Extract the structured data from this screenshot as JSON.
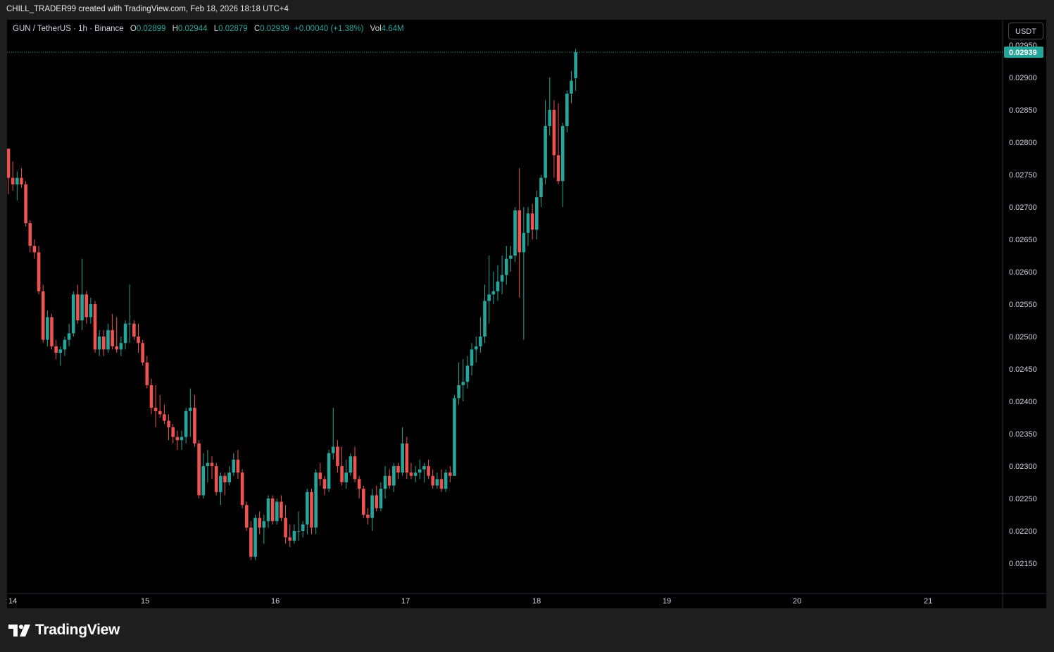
{
  "header": {
    "credit": "CHILL_TRADER99 created with TradingView.com, Feb 18, 2026 18:18 UTC+4"
  },
  "legend": {
    "symbol": "GUN / TetherUS · 1h · Binance",
    "open_label": "O",
    "open": "0.02899",
    "high_label": "H",
    "high": "0.02944",
    "low_label": "L",
    "low": "0.02879",
    "close_label": "C",
    "close": "0.02939",
    "change": "+0.00040 (+1.38%)",
    "vol_label": "Vol",
    "vol": "4.64M"
  },
  "currency_button": "USDT",
  "footer": {
    "brand": "TradingView",
    "logo_icon": "tradingview-logo-icon"
  },
  "colors": {
    "up": "#26a69a",
    "down": "#ef5350",
    "background": "#000000",
    "axis_text": "#d1d4dc"
  },
  "chart_data": {
    "type": "candlestick",
    "symbol": "GUN / TetherUS",
    "interval": "1h",
    "exchange": "Binance",
    "y_range": [
      0.02125,
      0.02975
    ],
    "y_ticks": [
      "0.02150",
      "0.02200",
      "0.02250",
      "0.02300",
      "0.02350",
      "0.02400",
      "0.02450",
      "0.02500",
      "0.02550",
      "0.02600",
      "0.02650",
      "0.02700",
      "0.02750",
      "0.02800",
      "0.02850",
      "0.02900",
      "0.02950"
    ],
    "x_ticks": [
      "14",
      "15",
      "16",
      "17",
      "18",
      "19",
      "20",
      "21"
    ],
    "last_price": "0.02939",
    "grid": false,
    "candles": [
      [
        0.0279,
        0.0279,
        0.0272,
        0.02745
      ],
      [
        0.02745,
        0.0277,
        0.02725,
        0.02735
      ],
      [
        0.02735,
        0.02755,
        0.0271,
        0.02745
      ],
      [
        0.02745,
        0.0276,
        0.0273,
        0.02735
      ],
      [
        0.02735,
        0.0274,
        0.0267,
        0.02675
      ],
      [
        0.02675,
        0.0268,
        0.0263,
        0.0264
      ],
      [
        0.0264,
        0.0265,
        0.0262,
        0.0263
      ],
      [
        0.0263,
        0.0264,
        0.02565,
        0.0257
      ],
      [
        0.0257,
        0.0258,
        0.0249,
        0.02495
      ],
      [
        0.02495,
        0.0254,
        0.02485,
        0.0253
      ],
      [
        0.0253,
        0.02535,
        0.0248,
        0.02485
      ],
      [
        0.02485,
        0.02495,
        0.02465,
        0.02475
      ],
      [
        0.02475,
        0.02485,
        0.02455,
        0.0248
      ],
      [
        0.0248,
        0.025,
        0.0247,
        0.02495
      ],
      [
        0.02495,
        0.0252,
        0.02485,
        0.02505
      ],
      [
        0.02505,
        0.0257,
        0.025,
        0.02565
      ],
      [
        0.02565,
        0.0258,
        0.0252,
        0.02525
      ],
      [
        0.02525,
        0.0262,
        0.0251,
        0.02565
      ],
      [
        0.02565,
        0.0257,
        0.0252,
        0.0253
      ],
      [
        0.0253,
        0.0256,
        0.0252,
        0.0255
      ],
      [
        0.0255,
        0.02555,
        0.02475,
        0.0248
      ],
      [
        0.0248,
        0.0251,
        0.0247,
        0.025
      ],
      [
        0.025,
        0.0251,
        0.0247,
        0.0248
      ],
      [
        0.0248,
        0.0252,
        0.02475,
        0.0251
      ],
      [
        0.0251,
        0.02535,
        0.0248,
        0.02485
      ],
      [
        0.02485,
        0.0253,
        0.02475,
        0.0248
      ],
      [
        0.0248,
        0.025,
        0.0247,
        0.0249
      ],
      [
        0.0249,
        0.02525,
        0.0248,
        0.0252
      ],
      [
        0.0252,
        0.0258,
        0.0249,
        0.0252
      ],
      [
        0.0252,
        0.02525,
        0.02495,
        0.025
      ],
      [
        0.025,
        0.0252,
        0.02475,
        0.0249
      ],
      [
        0.0249,
        0.02495,
        0.02455,
        0.0246
      ],
      [
        0.0246,
        0.0247,
        0.0242,
        0.02425
      ],
      [
        0.02425,
        0.02435,
        0.0238,
        0.0239
      ],
      [
        0.0239,
        0.02425,
        0.0236,
        0.02385
      ],
      [
        0.02385,
        0.0241,
        0.02375,
        0.0238
      ],
      [
        0.0238,
        0.02395,
        0.02365,
        0.0237
      ],
      [
        0.0237,
        0.0238,
        0.0234,
        0.0236
      ],
      [
        0.0236,
        0.02365,
        0.02335,
        0.02345
      ],
      [
        0.02345,
        0.02355,
        0.02325,
        0.0234
      ],
      [
        0.0234,
        0.02355,
        0.02325,
        0.02345
      ],
      [
        0.02345,
        0.0239,
        0.02335,
        0.02385
      ],
      [
        0.02385,
        0.0242,
        0.02345,
        0.0239
      ],
      [
        0.0239,
        0.0241,
        0.0233,
        0.02335
      ],
      [
        0.02335,
        0.0234,
        0.0225,
        0.02255
      ],
      [
        0.02255,
        0.0232,
        0.0225,
        0.023
      ],
      [
        0.023,
        0.02325,
        0.02275,
        0.02305
      ],
      [
        0.02305,
        0.02315,
        0.0228,
        0.023
      ],
      [
        0.023,
        0.02305,
        0.02255,
        0.0226
      ],
      [
        0.0226,
        0.0229,
        0.0224,
        0.02285
      ],
      [
        0.02285,
        0.0229,
        0.02255,
        0.02275
      ],
      [
        0.02275,
        0.023,
        0.0227,
        0.0229
      ],
      [
        0.0229,
        0.0232,
        0.02285,
        0.0231
      ],
      [
        0.0231,
        0.02325,
        0.0228,
        0.0229
      ],
      [
        0.0229,
        0.02295,
        0.02235,
        0.0224
      ],
      [
        0.0224,
        0.02245,
        0.022,
        0.02205
      ],
      [
        0.02205,
        0.02215,
        0.02155,
        0.0216
      ],
      [
        0.0216,
        0.02225,
        0.02155,
        0.0222
      ],
      [
        0.0222,
        0.0223,
        0.02195,
        0.02205
      ],
      [
        0.02205,
        0.02225,
        0.0218,
        0.02215
      ],
      [
        0.02215,
        0.02255,
        0.02205,
        0.0225
      ],
      [
        0.0225,
        0.02255,
        0.0221,
        0.02215
      ],
      [
        0.02215,
        0.0225,
        0.0221,
        0.02245
      ],
      [
        0.02245,
        0.02255,
        0.02215,
        0.0222
      ],
      [
        0.0222,
        0.0224,
        0.0218,
        0.0219
      ],
      [
        0.0219,
        0.0221,
        0.02175,
        0.02185
      ],
      [
        0.02185,
        0.0221,
        0.0218,
        0.022
      ],
      [
        0.022,
        0.0223,
        0.02185,
        0.022
      ],
      [
        0.022,
        0.02215,
        0.0219,
        0.0221
      ],
      [
        0.0221,
        0.02265,
        0.02195,
        0.0226
      ],
      [
        0.0226,
        0.02265,
        0.02195,
        0.02205
      ],
      [
        0.02205,
        0.02295,
        0.02195,
        0.0229
      ],
      [
        0.0229,
        0.02305,
        0.0227,
        0.0228
      ],
      [
        0.0228,
        0.02285,
        0.02255,
        0.02265
      ],
      [
        0.02265,
        0.02325,
        0.0226,
        0.0232
      ],
      [
        0.0232,
        0.0239,
        0.0231,
        0.0233
      ],
      [
        0.0233,
        0.0234,
        0.0229,
        0.023
      ],
      [
        0.023,
        0.0233,
        0.0227,
        0.02275
      ],
      [
        0.02275,
        0.0231,
        0.02265,
        0.0229
      ],
      [
        0.0229,
        0.0232,
        0.02285,
        0.02315
      ],
      [
        0.02315,
        0.0233,
        0.02275,
        0.0228
      ],
      [
        0.0228,
        0.02285,
        0.0225,
        0.02265
      ],
      [
        0.02265,
        0.0227,
        0.0222,
        0.02225
      ],
      [
        0.02225,
        0.02235,
        0.0221,
        0.0222
      ],
      [
        0.0222,
        0.02265,
        0.022,
        0.02255
      ],
      [
        0.02255,
        0.0227,
        0.0223,
        0.02235
      ],
      [
        0.02235,
        0.02275,
        0.0223,
        0.02265
      ],
      [
        0.02265,
        0.023,
        0.0225,
        0.02285
      ],
      [
        0.02285,
        0.02295,
        0.02265,
        0.0227
      ],
      [
        0.0227,
        0.02305,
        0.0226,
        0.023
      ],
      [
        0.023,
        0.02305,
        0.0228,
        0.0229
      ],
      [
        0.0229,
        0.0236,
        0.02285,
        0.02335
      ],
      [
        0.02335,
        0.02345,
        0.0228,
        0.0229
      ],
      [
        0.0229,
        0.02305,
        0.0228,
        0.02285
      ],
      [
        0.02285,
        0.023,
        0.02275,
        0.0229
      ],
      [
        0.0229,
        0.0231,
        0.0228,
        0.02295
      ],
      [
        0.02295,
        0.02305,
        0.02275,
        0.023
      ],
      [
        0.023,
        0.0231,
        0.0228,
        0.02285
      ],
      [
        0.02285,
        0.02295,
        0.02265,
        0.0227
      ],
      [
        0.0227,
        0.0229,
        0.02265,
        0.0228
      ],
      [
        0.0228,
        0.02295,
        0.0226,
        0.02265
      ],
      [
        0.02265,
        0.02295,
        0.0226,
        0.0229
      ],
      [
        0.0229,
        0.023,
        0.02275,
        0.02285
      ],
      [
        0.02285,
        0.0241,
        0.02285,
        0.02405
      ],
      [
        0.02405,
        0.0246,
        0.02395,
        0.02425
      ],
      [
        0.02425,
        0.02465,
        0.024,
        0.0243
      ],
      [
        0.0243,
        0.0247,
        0.0242,
        0.02455
      ],
      [
        0.02455,
        0.0249,
        0.0244,
        0.0248
      ],
      [
        0.0248,
        0.025,
        0.0246,
        0.02485
      ],
      [
        0.02485,
        0.0253,
        0.02475,
        0.025
      ],
      [
        0.025,
        0.0258,
        0.0249,
        0.02555
      ],
      [
        0.02555,
        0.02625,
        0.0252,
        0.02565
      ],
      [
        0.02565,
        0.026,
        0.0255,
        0.0257
      ],
      [
        0.0257,
        0.0261,
        0.02555,
        0.02585
      ],
      [
        0.02585,
        0.02625,
        0.02565,
        0.02595
      ],
      [
        0.02595,
        0.0264,
        0.0258,
        0.0262
      ],
      [
        0.0262,
        0.0264,
        0.026,
        0.02625
      ],
      [
        0.02625,
        0.027,
        0.02615,
        0.02695
      ],
      [
        0.02695,
        0.0276,
        0.0256,
        0.0263
      ],
      [
        0.0263,
        0.027,
        0.02495,
        0.0266
      ],
      [
        0.0266,
        0.027,
        0.0264,
        0.0269
      ],
      [
        0.0269,
        0.02705,
        0.0265,
        0.02665
      ],
      [
        0.02665,
        0.02725,
        0.0265,
        0.02715
      ],
      [
        0.02715,
        0.0275,
        0.027,
        0.02745
      ],
      [
        0.02745,
        0.02865,
        0.02735,
        0.02825
      ],
      [
        0.02825,
        0.029,
        0.0281,
        0.0285
      ],
      [
        0.0285,
        0.02865,
        0.02745,
        0.0278
      ],
      [
        0.0278,
        0.0286,
        0.02735,
        0.0274
      ],
      [
        0.0274,
        0.0283,
        0.027,
        0.02825
      ],
      [
        0.02825,
        0.0288,
        0.02815,
        0.02875
      ],
      [
        0.02875,
        0.0291,
        0.0286,
        0.02895
      ],
      [
        0.02899,
        0.02944,
        0.02879,
        0.02939
      ]
    ]
  }
}
